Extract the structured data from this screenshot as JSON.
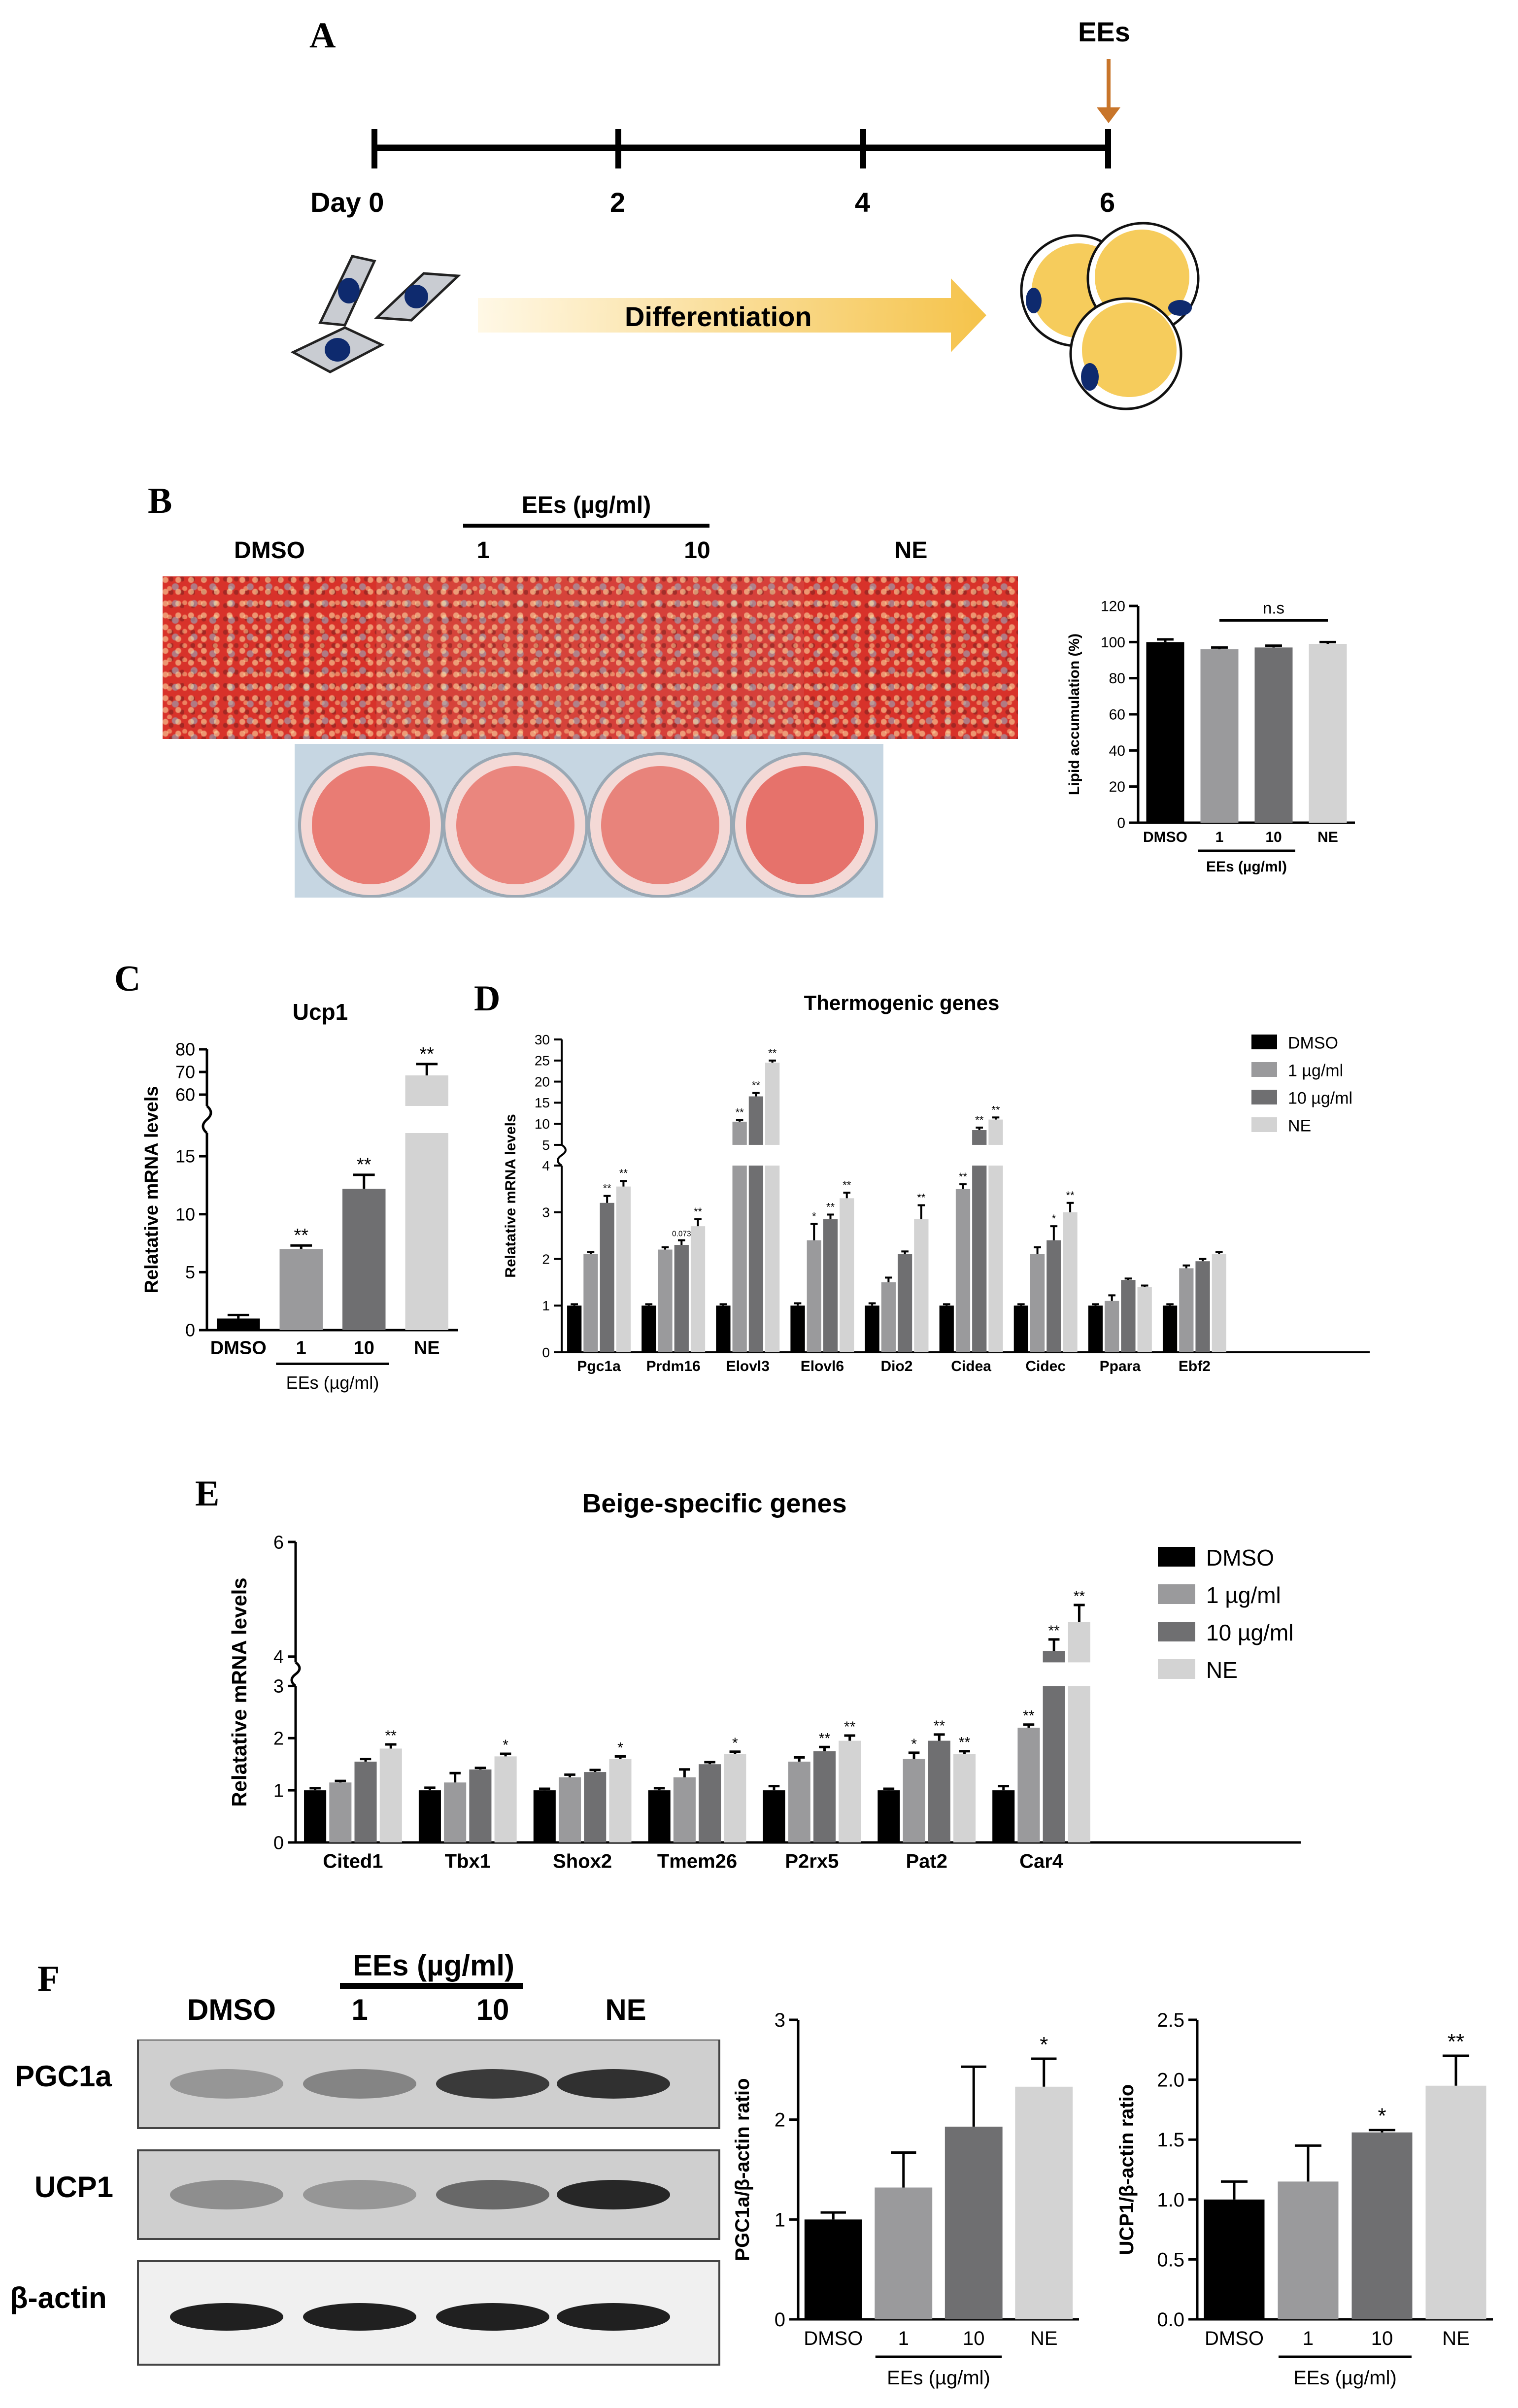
{
  "figure": {
    "panels": {
      "A": "A",
      "B": "B",
      "C": "C",
      "D": "D",
      "E": "E",
      "F": "F"
    },
    "panel_a": {
      "ees_label": "EEs",
      "day_labels": [
        "Day 0",
        "2",
        "4",
        "6"
      ],
      "arrow_label": "Differentiation",
      "colors": {
        "arrow": "#c8752a",
        "fat": "#f6cc5c",
        "nucleus": "#0e2a6e",
        "cell": "#c9ccd2"
      }
    },
    "panel_b": {
      "group_header": "EEs (µg/ml)",
      "column_labels": [
        "DMSO",
        "1",
        "10",
        "NE"
      ],
      "stain_color": "#d8322a"
    },
    "panel_f": {
      "group_header": "EEs (µg/ml)",
      "column_labels": [
        "DMSO",
        "1",
        "10",
        "NE"
      ],
      "row_labels": [
        "PGC1a",
        "UCP1",
        "β-actin"
      ],
      "band_intensity": {
        "PGC1a": [
          0.3,
          0.4,
          0.8,
          0.85
        ],
        "UCP1": [
          0.35,
          0.3,
          0.55,
          0.9
        ],
        "β-actin": [
          0.95,
          0.95,
          0.95,
          0.95
        ]
      }
    }
  },
  "chart_data": [
    {
      "id": "B-lipid",
      "type": "bar",
      "categories": [
        "DMSO",
        "1",
        "10",
        "NE"
      ],
      "values": [
        100,
        96,
        97,
        99
      ],
      "errors": [
        1.5,
        1.0,
        1.0,
        1.0
      ],
      "colors": [
        "#000000",
        "#9a9a9c",
        "#6f6f71",
        "#d3d3d3"
      ],
      "ylabel": "Lipid accumulation (%)",
      "ylim": [
        0,
        120
      ],
      "yticks": [
        0,
        20,
        40,
        60,
        80,
        100,
        120
      ],
      "group_label": "EEs (µg/ml)",
      "annotation": "n.s"
    },
    {
      "id": "C-ucp1",
      "type": "bar",
      "title": "Ucp1",
      "categories": [
        "DMSO",
        "1",
        "10",
        "NE"
      ],
      "values": [
        1.0,
        7.0,
        12.2,
        68.5
      ],
      "errors": [
        0.3,
        0.3,
        1.2,
        5.0
      ],
      "significance": [
        "",
        "**",
        "**",
        "**"
      ],
      "colors": [
        "#000000",
        "#9a9a9c",
        "#6f6f71",
        "#d3d3d3"
      ],
      "ylabel": "Relatative mRNA levels",
      "yticks_lower": [
        0,
        5,
        10,
        15
      ],
      "yticks_upper": [
        60,
        70,
        80
      ],
      "axis_break": [
        17,
        55
      ],
      "group_label": "EEs (µg/ml)"
    },
    {
      "id": "D-thermogenic",
      "type": "bar",
      "title": "Thermogenic genes",
      "categories": [
        "Pgc1a",
        "Prdm16",
        "Elovl3",
        "Elovl6",
        "Dio2",
        "Cidea",
        "Cidec",
        "Ppara",
        "Ebf2"
      ],
      "series": [
        {
          "name": "DMSO",
          "values": [
            1,
            1,
            1,
            1,
            1,
            1,
            1,
            1,
            1
          ],
          "errors": [
            0.03,
            0.03,
            0.03,
            0.05,
            0.05,
            0.03,
            0.03,
            0.03,
            0.03
          ]
        },
        {
          "name": "1 µg/ml",
          "values": [
            2.1,
            2.2,
            10.5,
            2.4,
            1.5,
            3.5,
            2.1,
            1.1,
            1.8
          ],
          "errors": [
            0.05,
            0.05,
            0.4,
            0.35,
            0.1,
            0.1,
            0.15,
            0.12,
            0.06
          ]
        },
        {
          "name": "10 µg/ml",
          "values": [
            3.2,
            2.3,
            16.5,
            2.85,
            2.1,
            8.5,
            2.4,
            1.55,
            1.95
          ],
          "errors": [
            0.15,
            0.1,
            0.8,
            0.1,
            0.06,
            0.6,
            0.3,
            0.03,
            0.05
          ]
        },
        {
          "name": "NE",
          "values": [
            3.55,
            2.7,
            24.5,
            3.3,
            2.85,
            11.0,
            3.0,
            1.4,
            2.1
          ],
          "errors": [
            0.12,
            0.15,
            0.5,
            0.12,
            0.3,
            0.5,
            0.2,
            0.03,
            0.05
          ]
        }
      ],
      "significance": [
        [
          "",
          "",
          "",
          "",
          "",
          "",
          "",
          "",
          ""
        ],
        [
          "",
          "",
          "**",
          "*",
          "",
          "**",
          "",
          "",
          ""
        ],
        [
          "**",
          "0.073",
          "**",
          "**",
          "",
          "**",
          "*",
          "",
          ""
        ],
        [
          "**",
          "**",
          "**",
          "**",
          "**",
          "**",
          "**",
          "",
          ""
        ]
      ],
      "colors": [
        "#000000",
        "#9a9a9c",
        "#6f6f71",
        "#d3d3d3"
      ],
      "ylabel": "Relatative mRNA levels",
      "yticks_lower": [
        0,
        1,
        2,
        3,
        4
      ],
      "yticks_upper": [
        5,
        10,
        15,
        20,
        25,
        30
      ],
      "axis_break": [
        4.1,
        4.9
      ],
      "legend": "right"
    },
    {
      "id": "E-beige",
      "type": "bar",
      "title": "Beige-specific genes",
      "categories": [
        "Cited1",
        "Tbx1",
        "Shox2",
        "Tmem26",
        "P2rx5",
        "Pat2",
        "Car4"
      ],
      "series": [
        {
          "name": "DMSO",
          "values": [
            1,
            1,
            1,
            1,
            1,
            1,
            1
          ],
          "errors": [
            0.04,
            0.05,
            0.03,
            0.04,
            0.08,
            0.03,
            0.08
          ]
        },
        {
          "name": "1 µg/ml",
          "values": [
            1.15,
            1.15,
            1.25,
            1.25,
            1.55,
            1.6,
            2.2
          ],
          "errors": [
            0.03,
            0.18,
            0.05,
            0.15,
            0.08,
            0.12,
            0.06
          ]
        },
        {
          "name": "10 µg/ml",
          "values": [
            1.55,
            1.4,
            1.35,
            1.5,
            1.75,
            1.95,
            4.1
          ],
          "errors": [
            0.05,
            0.03,
            0.04,
            0.04,
            0.08,
            0.12,
            0.2
          ]
        },
        {
          "name": "NE",
          "values": [
            1.8,
            1.65,
            1.6,
            1.7,
            1.95,
            1.7,
            4.6
          ],
          "errors": [
            0.08,
            0.05,
            0.05,
            0.04,
            0.1,
            0.05,
            0.3
          ]
        }
      ],
      "significance": [
        [
          "",
          "",
          "",
          "",
          "",
          "",
          ""
        ],
        [
          "",
          "",
          "",
          "",
          "",
          "*",
          "**"
        ],
        [
          "",
          "",
          "",
          "",
          "**",
          "**",
          "**"
        ],
        [
          "**",
          "*",
          "*",
          "*",
          "**",
          "**",
          "**"
        ]
      ],
      "colors": [
        "#000000",
        "#9a9a9c",
        "#6f6f71",
        "#d3d3d3"
      ],
      "ylabel": "Relatative mRNA levels",
      "yticks_lower": [
        0,
        1,
        2,
        3
      ],
      "yticks_upper": [
        4,
        6
      ],
      "axis_break": [
        3.1,
        3.6
      ],
      "legend": "right"
    },
    {
      "id": "F-pgc1a",
      "type": "bar",
      "categories": [
        "DMSO",
        "1",
        "10",
        "NE"
      ],
      "values": [
        1.0,
        1.32,
        1.93,
        2.33
      ],
      "errors": [
        0.07,
        0.35,
        0.6,
        0.28
      ],
      "significance": [
        "",
        "",
        "",
        "*"
      ],
      "colors": [
        "#000000",
        "#9a9a9c",
        "#6f6f71",
        "#d3d3d3"
      ],
      "ylabel": "PGC1a/β-actin ratio",
      "ylim": [
        0,
        3
      ],
      "yticks": [
        0,
        1,
        2,
        3
      ],
      "group_label": "EEs (µg/ml)"
    },
    {
      "id": "F-ucp1",
      "type": "bar",
      "categories": [
        "DMSO",
        "1",
        "10",
        "NE"
      ],
      "values": [
        1.0,
        1.15,
        1.56,
        1.95
      ],
      "errors": [
        0.15,
        0.3,
        0.02,
        0.25
      ],
      "significance": [
        "",
        "",
        "*",
        "**"
      ],
      "colors": [
        "#000000",
        "#9a9a9c",
        "#6f6f71",
        "#d3d3d3"
      ],
      "ylabel": "UCP1/β-actin ratio",
      "ylim": [
        0,
        2.5
      ],
      "yticks": [
        0.0,
        0.5,
        1.0,
        1.5,
        2.0,
        2.5
      ],
      "group_label": "EEs (µg/ml)"
    }
  ]
}
